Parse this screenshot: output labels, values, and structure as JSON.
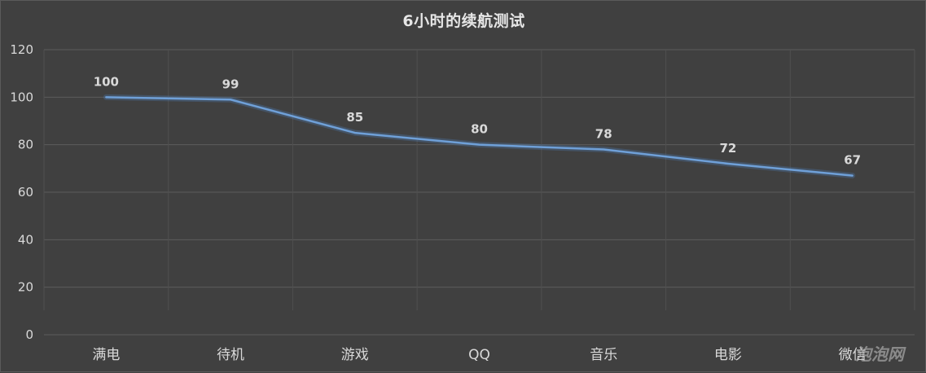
{
  "chart_data": {
    "type": "line",
    "title": "6小时的续航测试",
    "xlabel": "",
    "ylabel": "",
    "categories": [
      "满电",
      "待机",
      "游戏",
      "QQ",
      "音乐",
      "电影",
      "微信"
    ],
    "series": [
      {
        "values": [
          100,
          99,
          85,
          80,
          78,
          72,
          67
        ]
      }
    ],
    "ylim": [
      0,
      120
    ],
    "yticks": [
      0,
      20,
      40,
      60,
      80,
      100,
      120
    ],
    "data_labels": true,
    "grid": true,
    "legend": "none"
  },
  "colors": {
    "background": "#404040",
    "line": "#6fa0d8",
    "text": "#d9d9d9"
  },
  "watermark": "泡泡网"
}
